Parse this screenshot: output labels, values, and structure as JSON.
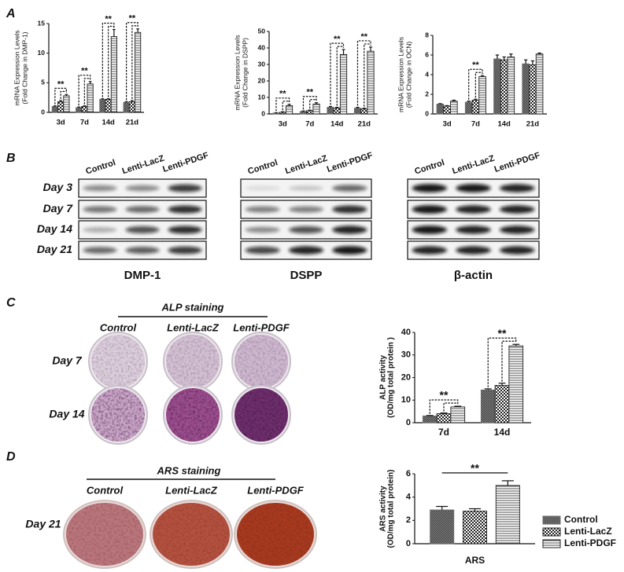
{
  "chart_data": [
    {
      "type": "bar",
      "ylabel": [
        "mRNA Expression Levels",
        "(Fold Change in DMP-1)"
      ],
      "categories": [
        "3d",
        "7d",
        "14d",
        "21d"
      ],
      "series": [
        {
          "pattern": "dense",
          "color": "#6e6e6e",
          "values": [
            1.0,
            0.8,
            2.2,
            1.7
          ],
          "errors": [
            0.1,
            0.1,
            0.1,
            0.1
          ]
        },
        {
          "pattern": "checker",
          "color": "#222222",
          "values": [
            1.8,
            1.0,
            2.2,
            1.8
          ],
          "errors": [
            0.2,
            0.1,
            0.1,
            0.2
          ]
        },
        {
          "pattern": "hlines",
          "color": "#222222",
          "values": [
            2.8,
            4.8,
            12.8,
            13.5
          ],
          "errors": [
            0.2,
            0.4,
            1.2,
            0.6
          ]
        }
      ],
      "ylim": [
        0,
        15
      ],
      "yticks": [
        0,
        5,
        10,
        15
      ],
      "annotations": [
        {
          "text": "**",
          "category": "3d"
        },
        {
          "text": "**",
          "category": "7d"
        },
        {
          "text": "**",
          "category": "14d"
        },
        {
          "text": "**",
          "category": "21d"
        }
      ],
      "bracket_style": "dashed"
    },
    {
      "type": "bar",
      "ylabel": [
        "mRNA Expression Levels",
        "(Fold Change in DSPP)"
      ],
      "categories": [
        "3d",
        "7d",
        "14d",
        "21d"
      ],
      "series": [
        {
          "pattern": "dense",
          "color": "#6e6e6e",
          "values": [
            0.5,
            1.5,
            4,
            3.5
          ],
          "errors": [
            0.2,
            0.3,
            0.5,
            0.5
          ]
        },
        {
          "pattern": "checker",
          "color": "#222222",
          "values": [
            1,
            2,
            3.5,
            3
          ],
          "errors": [
            0.3,
            0.3,
            0.5,
            0.5
          ]
        },
        {
          "pattern": "hlines",
          "color": "#222222",
          "values": [
            5,
            6,
            36,
            38
          ],
          "errors": [
            0.8,
            0.8,
            3,
            2.5
          ]
        }
      ],
      "ylim": [
        0,
        50
      ],
      "yticks": [
        0,
        10,
        20,
        30,
        40,
        50
      ],
      "annotations": [
        {
          "text": "**",
          "category": "3d"
        },
        {
          "text": "**",
          "category": "7d"
        },
        {
          "text": "**",
          "category": "14d"
        },
        {
          "text": "**",
          "category": "21d"
        }
      ],
      "bracket_style": "dashed"
    },
    {
      "type": "bar",
      "ylabel": [
        "mRNA Expression Levels",
        "(Fold Change in OCN)"
      ],
      "categories": [
        "3d",
        "7d",
        "14d",
        "21d"
      ],
      "series": [
        {
          "pattern": "dense",
          "color": "#6e6e6e",
          "values": [
            1.0,
            1.2,
            5.6,
            5.1
          ],
          "errors": [
            0.05,
            0.1,
            0.4,
            0.4
          ]
        },
        {
          "pattern": "checker",
          "color": "#222222",
          "values": [
            0.8,
            1.4,
            5.5,
            5.0
          ],
          "errors": [
            0.05,
            0.1,
            0.3,
            0.4
          ]
        },
        {
          "pattern": "hlines",
          "color": "#222222",
          "values": [
            1.3,
            3.8,
            5.8,
            6.1
          ],
          "errors": [
            0.1,
            0.1,
            0.3,
            0.1
          ]
        }
      ],
      "ylim": [
        0,
        8
      ],
      "yticks": [
        0,
        2,
        4,
        6,
        8
      ],
      "annotations": [
        {
          "text": "**",
          "category": "7d"
        }
      ],
      "bracket_style": "dashed"
    },
    {
      "type": "bar",
      "ylabel": [
        "ALP activity",
        "(OD/mg total protein )"
      ],
      "categories": [
        "7d",
        "14d"
      ],
      "series": [
        {
          "pattern": "dense",
          "color": "#6e6e6e",
          "values": [
            3,
            14.5
          ],
          "errors": [
            0.2,
            0.5
          ]
        },
        {
          "pattern": "checker",
          "color": "#222222",
          "values": [
            4,
            16.5
          ],
          "errors": [
            0.3,
            1.0
          ]
        },
        {
          "pattern": "hlines",
          "color": "#222222",
          "values": [
            7,
            34
          ],
          "errors": [
            0.3,
            0.7
          ]
        }
      ],
      "ylim": [
        0,
        40
      ],
      "yticks": [
        0,
        10,
        20,
        30,
        40
      ],
      "annotations": [
        {
          "text": "**",
          "category": "7d"
        },
        {
          "text": "**",
          "category": "14d"
        }
      ],
      "bracket_style": "dashed"
    },
    {
      "type": "bar",
      "ylabel": [
        "ARS activity",
        "(OD/mg total protein)"
      ],
      "xlabel": "ARS",
      "categories": [
        null
      ],
      "series": [
        {
          "name": "Control",
          "pattern": "dense",
          "color": "#6e6e6e",
          "values": [
            2.9
          ],
          "errors": [
            0.3
          ]
        },
        {
          "name": "Lenti-LacZ",
          "pattern": "checker",
          "color": "#222222",
          "values": [
            2.8
          ],
          "errors": [
            0.2
          ]
        },
        {
          "name": "Lenti-PDGF",
          "pattern": "hlines",
          "color": "#222222",
          "values": [
            5.0
          ],
          "errors": [
            0.4
          ]
        }
      ],
      "ylim": [
        0,
        6
      ],
      "yticks": [
        0,
        2,
        4,
        6
      ],
      "annotations": [
        {
          "text": "**",
          "category": null
        }
      ],
      "bracket_style": "solid",
      "legend": "right"
    }
  ],
  "panel_labels": [
    "A",
    "B",
    "C",
    "D"
  ],
  "blots": {
    "groups": [
      "Control",
      "Lenti-LacZ",
      "Lenti-PDGF"
    ],
    "days": [
      "Day 3",
      "Day 7",
      "Day 14",
      "Day 21"
    ],
    "proteins": [
      "DMP-1",
      "DSPP",
      "β-actin"
    ]
  },
  "alp_staining": {
    "title": "ALP staining",
    "groups": [
      "Control",
      "Lenti-LacZ",
      "Lenti-PDGF"
    ],
    "days": [
      "Day 7",
      "Day 14"
    ]
  },
  "ars_staining": {
    "title": "ARS staining",
    "groups": [
      "Control",
      "Lenti-LacZ",
      "Lenti-PDGF"
    ],
    "days": [
      "Day 21"
    ]
  }
}
